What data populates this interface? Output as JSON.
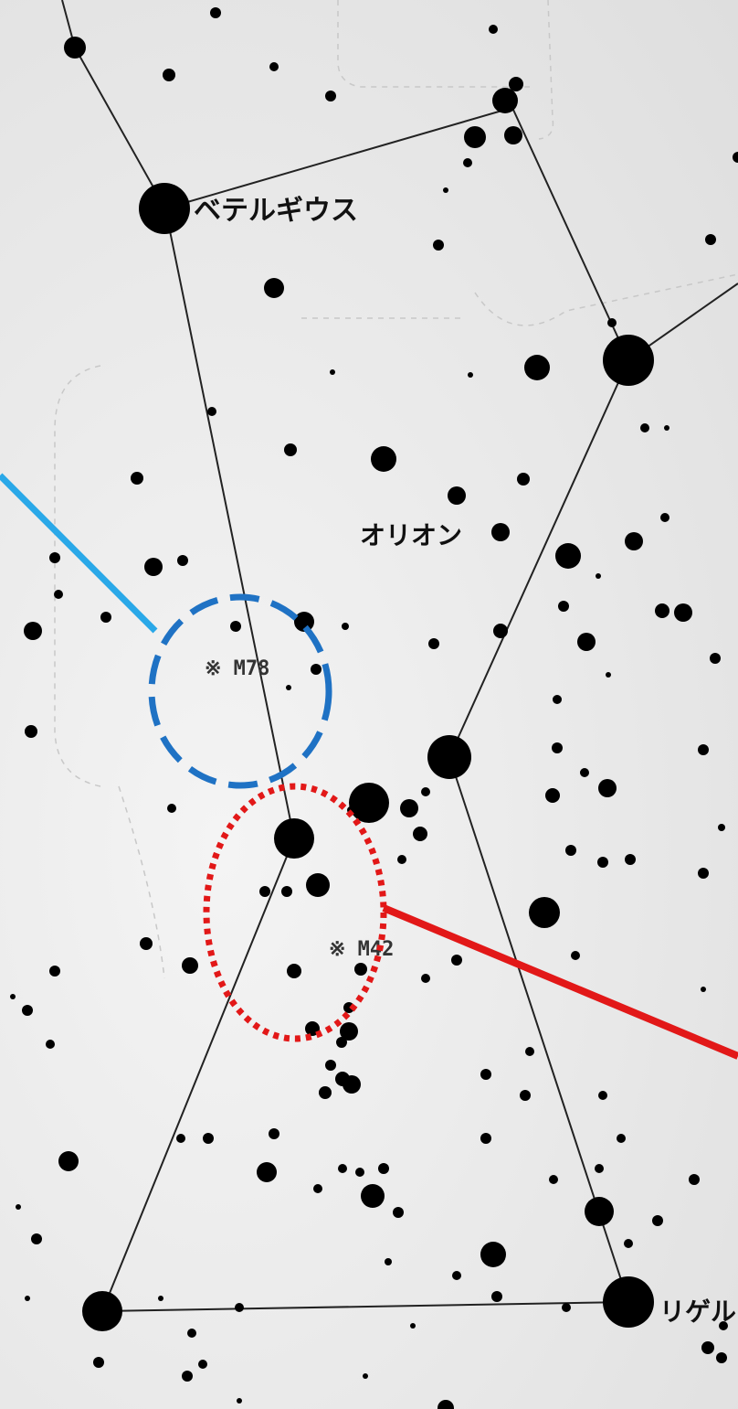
{
  "labels": {
    "betelgeuse": "ベテルギウス",
    "orion": "オリオン",
    "m78": "※ M78",
    "m42": "※ M42",
    "rigel": "リゲル"
  },
  "colors": {
    "star": "#000000",
    "constellation_line": "#222222",
    "boundary": "#c8c8c8",
    "blue_circle": "#1f72c4",
    "cyan_pointer": "#2aa8e8",
    "red_ellipse": "#e21818",
    "red_pointer": "#e21818"
  }
}
